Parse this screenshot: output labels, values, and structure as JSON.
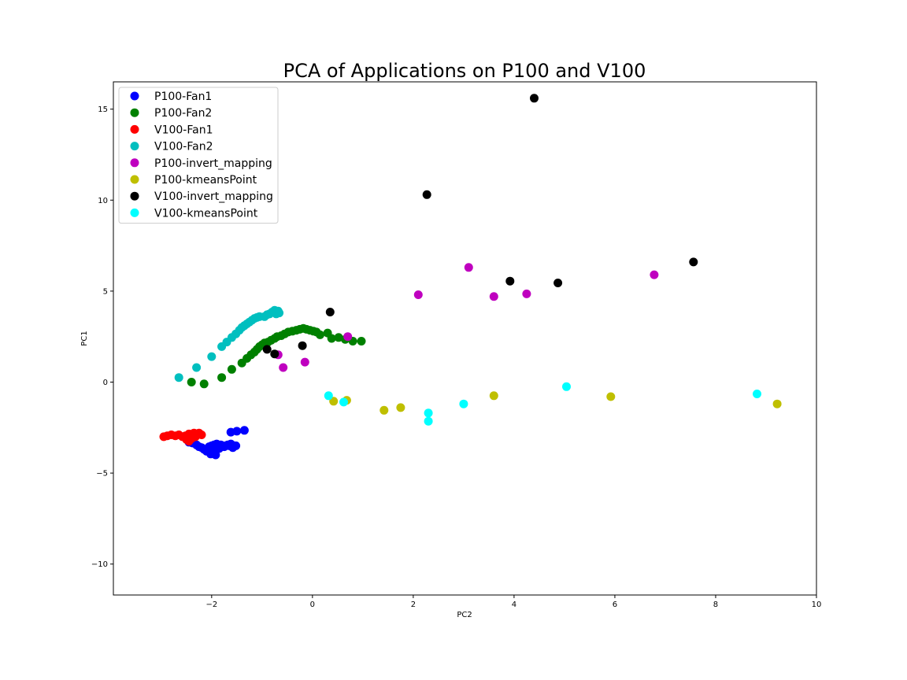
{
  "chart_data": {
    "type": "scatter",
    "title": "PCA of Applications on P100 and V100",
    "xlabel": "PC2",
    "ylabel": "PC1",
    "xlim": [
      -3.95,
      10.0
    ],
    "ylim": [
      -11.7,
      16.5
    ],
    "xticks": [
      -2,
      0,
      2,
      4,
      6,
      8,
      10
    ],
    "yticks": [
      -10,
      -5,
      0,
      5,
      10,
      15
    ],
    "xtick_labels": [
      "−2",
      "0",
      "2",
      "4",
      "6",
      "8",
      "10"
    ],
    "ytick_labels": [
      "−10",
      "−5",
      "0",
      "5",
      "10",
      "15"
    ],
    "grid": false,
    "legend_position": "top-left",
    "series": [
      {
        "name": "P100-Fan1",
        "color": "#0000ff",
        "points": [
          [
            -2.45,
            -3.3
          ],
          [
            -2.38,
            -3.35
          ],
          [
            -2.3,
            -3.45
          ],
          [
            -2.25,
            -3.55
          ],
          [
            -2.2,
            -3.6
          ],
          [
            -2.15,
            -3.7
          ],
          [
            -2.1,
            -3.8
          ],
          [
            -2.05,
            -3.55
          ],
          [
            -2.02,
            -3.95
          ],
          [
            -2.0,
            -3.5
          ],
          [
            -1.97,
            -3.6
          ],
          [
            -1.95,
            -3.45
          ],
          [
            -1.92,
            -4.0
          ],
          [
            -1.9,
            -3.4
          ],
          [
            -1.87,
            -3.55
          ],
          [
            -1.85,
            -3.65
          ],
          [
            -1.82,
            -3.45
          ],
          [
            -1.78,
            -3.5
          ],
          [
            -1.75,
            -3.55
          ],
          [
            -1.72,
            -3.5
          ],
          [
            -1.68,
            -3.45
          ],
          [
            -1.65,
            -3.5
          ],
          [
            -1.62,
            -3.4
          ],
          [
            -1.6,
            -3.45
          ],
          [
            -1.58,
            -3.6
          ],
          [
            -1.55,
            -3.5
          ],
          [
            -1.52,
            -3.5
          ],
          [
            -1.62,
            -2.75
          ],
          [
            -1.5,
            -2.7
          ],
          [
            -1.35,
            -2.65
          ]
        ]
      },
      {
        "name": "P100-Fan2",
        "color": "#008000",
        "points": [
          [
            -2.4,
            0.0
          ],
          [
            -2.15,
            -0.1
          ],
          [
            -1.8,
            0.25
          ],
          [
            -1.6,
            0.7
          ],
          [
            -1.4,
            1.05
          ],
          [
            -1.3,
            1.3
          ],
          [
            -1.22,
            1.5
          ],
          [
            -1.15,
            1.65
          ],
          [
            -1.1,
            1.8
          ],
          [
            -1.05,
            1.95
          ],
          [
            -1.0,
            2.05
          ],
          [
            -0.95,
            2.15
          ],
          [
            -0.88,
            2.2
          ],
          [
            -0.82,
            2.3
          ],
          [
            -0.75,
            2.4
          ],
          [
            -0.7,
            2.5
          ],
          [
            -0.62,
            2.55
          ],
          [
            -0.55,
            2.65
          ],
          [
            -0.48,
            2.75
          ],
          [
            -0.4,
            2.8
          ],
          [
            -0.32,
            2.85
          ],
          [
            -0.25,
            2.9
          ],
          [
            -0.18,
            2.95
          ],
          [
            -0.12,
            2.9
          ],
          [
            -0.05,
            2.85
          ],
          [
            0.02,
            2.8
          ],
          [
            0.08,
            2.75
          ],
          [
            0.15,
            2.6
          ],
          [
            0.3,
            2.7
          ],
          [
            0.38,
            2.4
          ],
          [
            0.52,
            2.45
          ],
          [
            0.65,
            2.35
          ],
          [
            0.8,
            2.25
          ],
          [
            0.97,
            2.25
          ]
        ]
      },
      {
        "name": "V100-Fan1",
        "color": "#ff0000",
        "points": [
          [
            -2.95,
            -3.0
          ],
          [
            -2.88,
            -2.95
          ],
          [
            -2.8,
            -2.9
          ],
          [
            -2.72,
            -2.95
          ],
          [
            -2.65,
            -2.9
          ],
          [
            -2.58,
            -3.0
          ],
          [
            -2.52,
            -2.95
          ],
          [
            -2.48,
            -3.05
          ],
          [
            -2.45,
            -2.85
          ],
          [
            -2.4,
            -3.1
          ],
          [
            -2.38,
            -2.9
          ],
          [
            -2.35,
            -2.8
          ],
          [
            -2.32,
            -3.0
          ],
          [
            -2.28,
            -2.85
          ],
          [
            -2.25,
            -2.8
          ],
          [
            -2.2,
            -2.9
          ],
          [
            -2.45,
            -3.25
          ],
          [
            -2.5,
            -3.15
          ]
        ]
      },
      {
        "name": "V100-Fan2",
        "color": "#00bfbf",
        "points": [
          [
            -2.65,
            0.25
          ],
          [
            -2.3,
            0.8
          ],
          [
            -2.0,
            1.4
          ],
          [
            -1.8,
            1.95
          ],
          [
            -1.7,
            2.2
          ],
          [
            -1.6,
            2.45
          ],
          [
            -1.52,
            2.65
          ],
          [
            -1.45,
            2.85
          ],
          [
            -1.4,
            3.0
          ],
          [
            -1.35,
            3.1
          ],
          [
            -1.3,
            3.2
          ],
          [
            -1.25,
            3.3
          ],
          [
            -1.2,
            3.4
          ],
          [
            -1.15,
            3.5
          ],
          [
            -1.1,
            3.55
          ],
          [
            -1.05,
            3.6
          ],
          [
            -0.95,
            3.6
          ],
          [
            -0.9,
            3.7
          ],
          [
            -0.85,
            3.75
          ],
          [
            -0.8,
            3.85
          ],
          [
            -0.75,
            3.95
          ],
          [
            -0.72,
            3.75
          ],
          [
            -0.68,
            3.9
          ],
          [
            -0.66,
            3.8
          ]
        ]
      },
      {
        "name": "P100-invert_mapping",
        "color": "#bf00bf",
        "points": [
          [
            -0.68,
            1.5
          ],
          [
            -0.58,
            0.8
          ],
          [
            -0.15,
            1.1
          ],
          [
            0.7,
            2.5
          ],
          [
            2.1,
            4.8
          ],
          [
            3.1,
            6.3
          ],
          [
            3.6,
            4.7
          ],
          [
            4.25,
            4.85
          ],
          [
            6.78,
            5.9
          ]
        ]
      },
      {
        "name": "P100-kmeansPoint",
        "color": "#bfbf00",
        "points": [
          [
            0.42,
            -1.05
          ],
          [
            0.68,
            -1.0
          ],
          [
            1.42,
            -1.55
          ],
          [
            1.75,
            -1.4
          ],
          [
            3.6,
            -0.75
          ],
          [
            5.92,
            -0.8
          ],
          [
            9.22,
            -1.2
          ]
        ]
      },
      {
        "name": "V100-invert_mapping",
        "color": "#000000",
        "points": [
          [
            -0.9,
            1.8
          ],
          [
            -0.75,
            1.55
          ],
          [
            -0.2,
            2.0
          ],
          [
            0.35,
            3.85
          ],
          [
            2.27,
            10.3
          ],
          [
            3.92,
            5.55
          ],
          [
            4.4,
            15.6
          ],
          [
            4.87,
            5.45
          ],
          [
            7.56,
            6.6
          ]
        ]
      },
      {
        "name": "V100-kmeansPoint",
        "color": "#00ffff",
        "points": [
          [
            0.32,
            -0.75
          ],
          [
            0.62,
            -1.1
          ],
          [
            2.3,
            -1.7
          ],
          [
            2.3,
            -2.15
          ],
          [
            3.0,
            -1.2
          ],
          [
            5.04,
            -0.25
          ],
          [
            8.82,
            -0.65
          ]
        ]
      }
    ]
  }
}
